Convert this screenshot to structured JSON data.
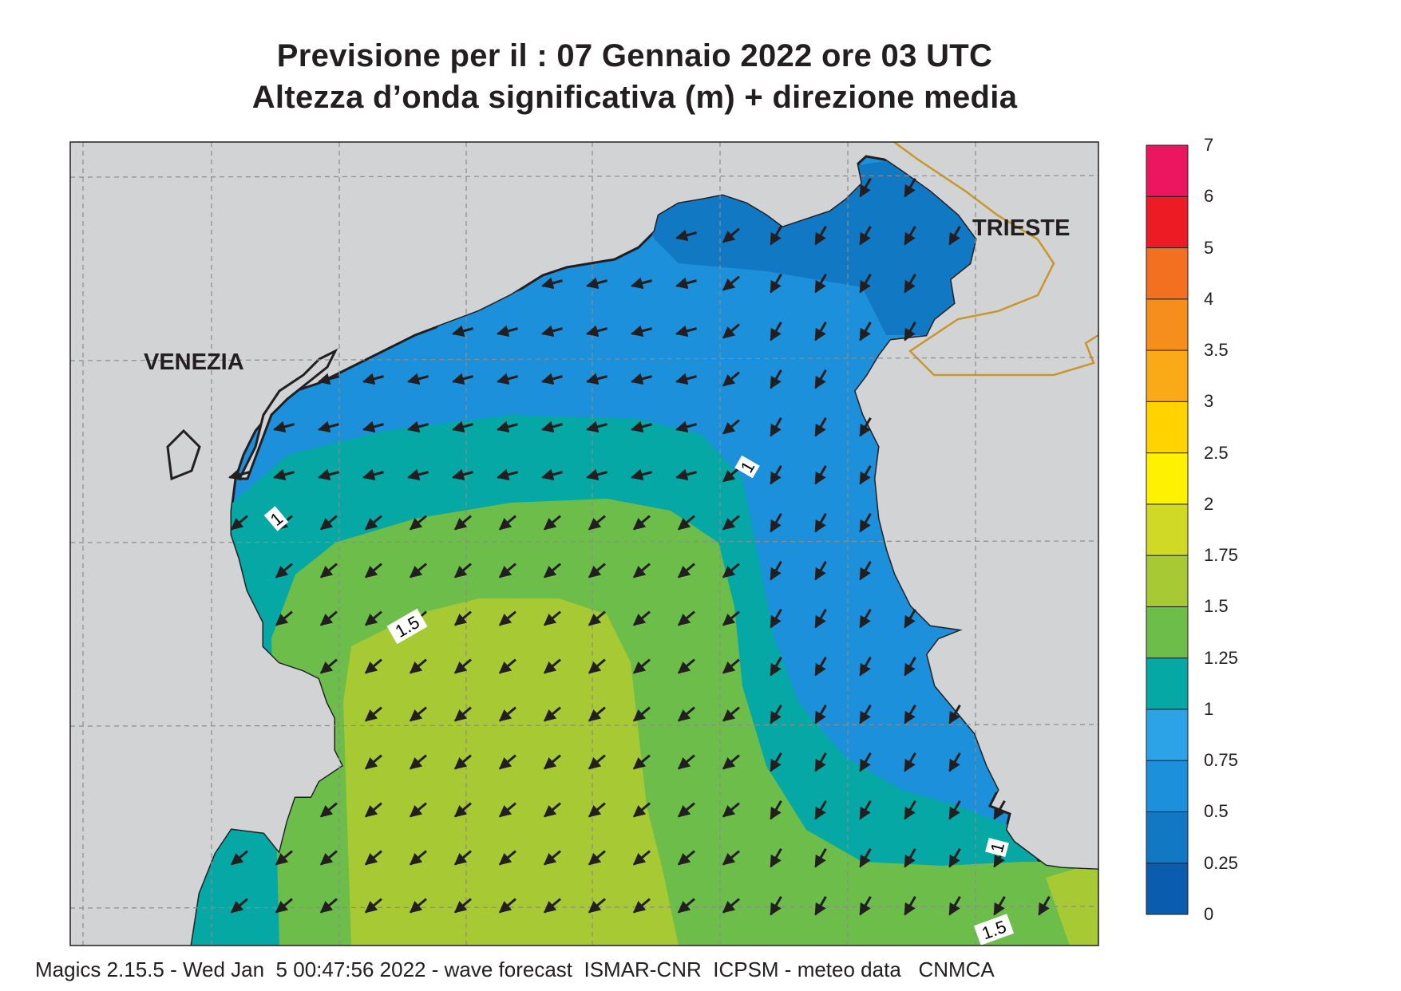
{
  "title": {
    "line1": "Previsione per il  :  07  Gennaio  2022   ore 03 UTC",
    "line2": "Altezza d’onda significativa (m) + direzione media"
  },
  "cities": {
    "venezia": "VENEZIA",
    "trieste": "TRIESTE"
  },
  "contour_labels": [
    "1",
    "1",
    "1",
    "1.5",
    "1.5"
  ],
  "colorbar": {
    "levels": [
      "0",
      "0.25",
      "0.5",
      "0.75",
      "1",
      "1.25",
      "1.5",
      "1.75",
      "2",
      "2.5",
      "3",
      "3.5",
      "4",
      "5",
      "6",
      "7"
    ],
    "colors": [
      "#0a5cae",
      "#1178c4",
      "#1c90da",
      "#2ba3e6",
      "#06a8a6",
      "#6cbd4a",
      "#a6c934",
      "#cfd926",
      "#fff200",
      "#ffd200",
      "#fbaa17",
      "#f68e1e",
      "#f37021",
      "#ed1c24",
      "#ec1560"
    ]
  },
  "map_colors": {
    "land": "#d2d3d5",
    "coast": "#231f20",
    "border": "#c9962b",
    "grid": "#8c8c8c",
    "arrow": "#231f20"
  },
  "wave_direction": "towards south-west",
  "footer": "Magics 2.15.5 - Wed Jan  5 00:47:56 2022 - wave forecast  ISMAR-CNR  ICPSM - meteo data   CNMCA"
}
